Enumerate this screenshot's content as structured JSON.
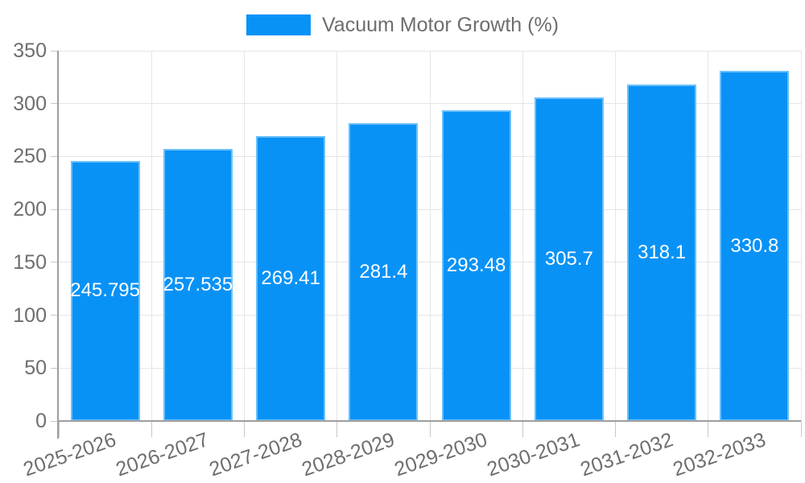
{
  "chart_data": {
    "type": "bar",
    "legend": {
      "label": "Vacuum Motor Growth (%)",
      "position": "top"
    },
    "categories": [
      "2025-2026",
      "2026-2027",
      "2027-2028",
      "2028-2029",
      "2029-2030",
      "2030-2031",
      "2031-2032",
      "2032-2033"
    ],
    "series": [
      {
        "name": "Vacuum Motor Growth (%)",
        "values": [
          245.795,
          257.535,
          269.41,
          281.4,
          293.48,
          305.7,
          318.1,
          330.8
        ],
        "value_labels": [
          "245.795",
          "257.535",
          "269.41",
          "281.4",
          "293.48",
          "305.7",
          "318.1",
          "330.8"
        ]
      }
    ],
    "xlabel": "",
    "ylabel": "",
    "ylim": [
      0,
      350
    ],
    "yticks": [
      0,
      50,
      100,
      150,
      200,
      250,
      300,
      350
    ],
    "ytick_labels": [
      "0",
      "50",
      "100",
      "150",
      "200",
      "250",
      "300",
      "350"
    ],
    "grid": true,
    "value_labels_position": "center-inside",
    "colors": {
      "bar_fill": "#0992f6",
      "bar_border": "#6cc0f9",
      "axis_line": "#9e9e9e",
      "gridline": "#e6e6e6",
      "tick_mark": "#c7c7c7",
      "label_text": "#6e6e6e",
      "value_label_text": "#ffffff",
      "background": "#ffffff"
    }
  }
}
